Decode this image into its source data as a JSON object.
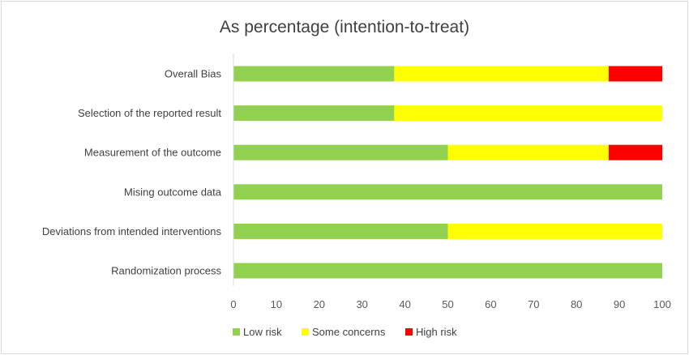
{
  "chart_data": {
    "type": "bar",
    "orientation": "horizontal",
    "stacked": true,
    "title": "As percentage (intention-to-treat)",
    "categories": [
      "Overall Bias",
      "Selection of the reported result",
      "Measurement of the outcome",
      "Mising outcome data",
      "Deviations from intended interventions",
      "Randomization process"
    ],
    "series": [
      {
        "name": "Low risk",
        "color": "#92d050",
        "values": [
          37.5,
          37.5,
          50,
          100,
          50,
          100
        ]
      },
      {
        "name": "Some concerns",
        "color": "#ffff00",
        "values": [
          50,
          62.5,
          37.5,
          0,
          50,
          0
        ]
      },
      {
        "name": "High risk",
        "color": "#ff0000",
        "values": [
          12.5,
          0,
          12.5,
          0,
          0,
          0
        ]
      }
    ],
    "xlim": [
      0,
      100
    ],
    "xticks": [
      0,
      10,
      20,
      30,
      40,
      50,
      60,
      70,
      80,
      90,
      100
    ],
    "grid": false,
    "legend_position": "bottom"
  }
}
